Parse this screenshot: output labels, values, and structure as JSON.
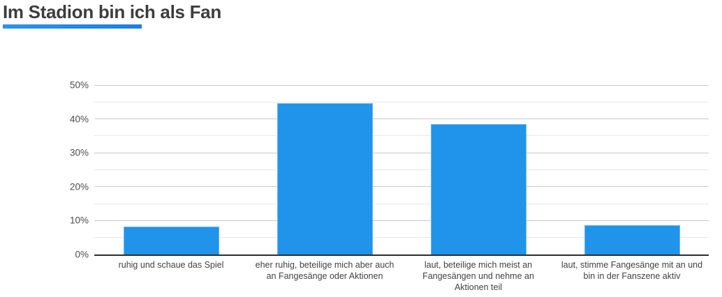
{
  "page": {
    "title": "Im Stadion bin ich als Fan"
  },
  "colors": {
    "bar": "#2094ea",
    "bar_border": "#6ab7f1",
    "accent_underline_from": "#2b93e8",
    "accent_underline_to": "#1c7fe0",
    "title_text": "#3d3d3d",
    "axis_text": "#4c4c4c",
    "grid_major": "#c9c9c9",
    "grid_minor": "#e7e7e7",
    "baseline": "#2d2d2d",
    "background": "#ffffff"
  },
  "chart_data": {
    "type": "bar",
    "title": "Im Stadion bin ich als Fan",
    "categories": [
      "ruhig und schaue das Spiel",
      "eher ruhig, beteilige mich aber auch an Fangesänge oder Aktionen",
      "laut, beteilige mich meist an Fangesängen und nehme an Aktionen teil",
      "laut, stimme Fangesänge mit an und bin in der Fanszene aktiv"
    ],
    "values": [
      8.2,
      44.7,
      38.5,
      8.7
    ],
    "value_unit": "%",
    "xlabel": "",
    "ylabel": "",
    "ylim": [
      0,
      50
    ],
    "ytick_step_major": 10,
    "ytick_step_minor": 5,
    "ytick_labels": [
      "0%",
      "10%",
      "20%",
      "30%",
      "40%",
      "50%"
    ],
    "grid": true,
    "legend": false
  }
}
